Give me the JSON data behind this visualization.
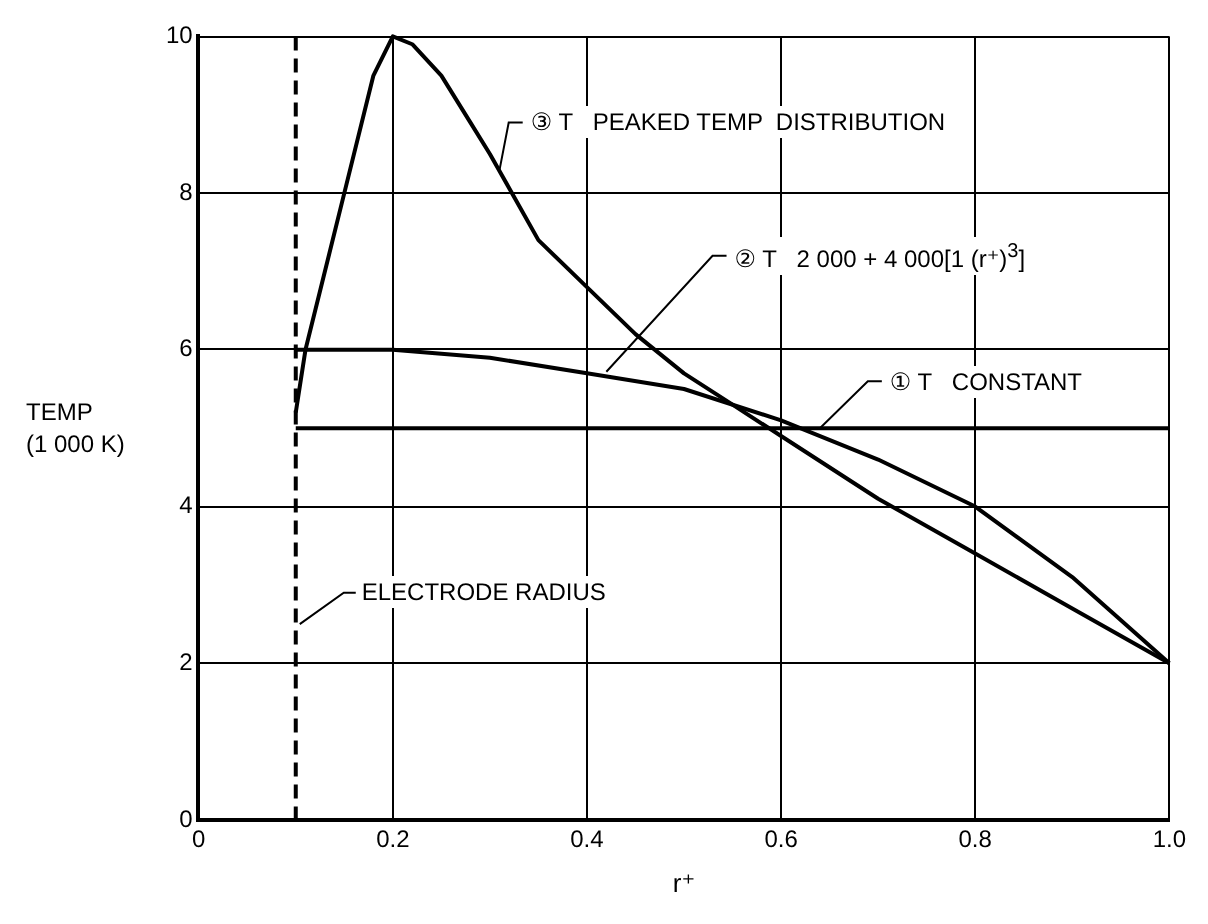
{
  "chart_data": {
    "type": "line",
    "xlabel": "r⁺",
    "ylabel": "TEMP\n(1 000 K)",
    "xlim": [
      0,
      1
    ],
    "ylim": [
      0,
      10
    ],
    "xticks": [
      0,
      0.2,
      0.4,
      0.6,
      0.8,
      {
        "value": 1,
        "label": "1.0"
      }
    ],
    "yticks": [
      0,
      2,
      4,
      6,
      8,
      10
    ],
    "grid": true,
    "legend": false,
    "marker": "none",
    "line_style": "solid",
    "series": [
      {
        "name": "① T   CONSTANT",
        "color": "#000000",
        "x": [
          0.1,
          1.0
        ],
        "values": [
          5,
          5
        ]
      },
      {
        "name": "② T   2 000 + 4 000[1 (r⁺)$^{3}$]",
        "color": "#000000",
        "x": [
          0.1,
          0.2,
          0.3,
          0.4,
          0.5,
          0.6,
          0.7,
          0.8,
          0.9,
          1.0
        ],
        "values": [
          6.0,
          6.0,
          5.9,
          5.7,
          5.5,
          5.1,
          4.6,
          4.0,
          3.1,
          2.0
        ]
      },
      {
        "name": "③ T   PEAKED TEMP  DISTRIBUTION",
        "color": "#000000",
        "x": [
          0.1,
          0.11,
          0.15,
          0.18,
          0.2,
          0.22,
          0.25,
          0.28,
          0.3,
          0.35,
          0.4,
          0.45,
          0.5,
          0.55,
          0.6,
          0.7,
          0.8,
          0.9,
          1.0
        ],
        "values": [
          5.2,
          6.0,
          8.0,
          9.5,
          10,
          9.9,
          9.5,
          8.9,
          8.5,
          7.4,
          6.8,
          6.2,
          5.7,
          5.3,
          4.9,
          4.1,
          3.4,
          2.7,
          2.0
        ]
      }
    ],
    "ref_lines": [
      {
        "axis": "x",
        "value": 0.1,
        "label": "ELECTRODE RADIUS",
        "line_style": "dashed",
        "color": "#000000"
      }
    ]
  }
}
